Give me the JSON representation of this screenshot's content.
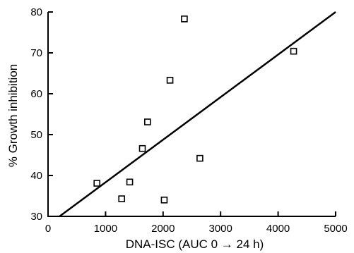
{
  "chart_data": {
    "type": "scatter",
    "title": "",
    "xlabel": "DNA-ISC (AUC 0 → 24 h)",
    "ylabel": "% Growth inhibition",
    "xlim": [
      0,
      5000
    ],
    "ylim": [
      30,
      80
    ],
    "x_ticks": [
      "0",
      "1000",
      "2000",
      "3000",
      "4000",
      "5000"
    ],
    "y_ticks": [
      "30",
      "40",
      "50",
      "60",
      "70",
      "80"
    ],
    "grid": false,
    "marker": "open-square",
    "points": [
      {
        "x": 850,
        "y": 38.1
      },
      {
        "x": 1280,
        "y": 34.3
      },
      {
        "x": 1420,
        "y": 38.4
      },
      {
        "x": 1640,
        "y": 46.6
      },
      {
        "x": 1730,
        "y": 53.1
      },
      {
        "x": 2020,
        "y": 34.0
      },
      {
        "x": 2120,
        "y": 63.3
      },
      {
        "x": 2370,
        "y": 78.3
      },
      {
        "x": 2640,
        "y": 44.2
      },
      {
        "x": 4270,
        "y": 70.4
      }
    ],
    "regression_line": {
      "x_start": 200,
      "y_start": 30.0,
      "x_end": 5000,
      "y_end": 80.0
    }
  }
}
